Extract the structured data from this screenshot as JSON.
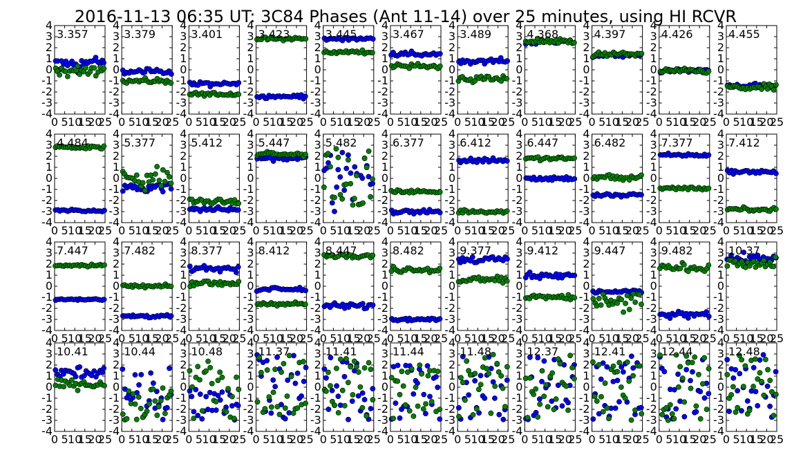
{
  "figure": {
    "title": "2016-11-13 06:35 UT: 3C84 Phases (Ant 11-14) over 25 minutes, using HI RCVR"
  },
  "chart_data": {
    "type": "scatter",
    "grid": false,
    "x_ticks": [
      "0",
      "5",
      "10",
      "15",
      "20",
      "25"
    ],
    "y_ticks": [
      "-4",
      "-3",
      "-2",
      "-1",
      "0",
      "1",
      "2",
      "3",
      "4"
    ],
    "xlim": [
      0,
      25
    ],
    "ylim": [
      -4,
      4
    ],
    "rows": 4,
    "cols": 11,
    "series_colors": [
      "#0000ff",
      "#008000"
    ],
    "panels": [
      {
        "label": "3.357",
        "s": [
          [
            "n",
            0.6,
            0.35,
            2
          ],
          [
            "n",
            -0.1,
            0.35,
            1.5
          ]
        ]
      },
      {
        "label": "3.379",
        "s": [
          [
            "n",
            -0.15,
            0.2,
            0
          ],
          [
            "n",
            -1.0,
            0.2,
            0
          ]
        ]
      },
      {
        "label": "3.401",
        "s": [
          [
            "n",
            -1.3,
            0.2,
            0
          ],
          [
            "n",
            -2.2,
            0.15,
            0
          ]
        ]
      },
      {
        "label": "3.423",
        "s": [
          [
            "n",
            -2.4,
            0.15,
            0
          ],
          [
            "n",
            2.8,
            0.15,
            0
          ]
        ]
      },
      {
        "label": "3.445",
        "s": [
          [
            "n",
            2.8,
            0.12,
            0
          ],
          [
            "n",
            1.6,
            0.18,
            0
          ]
        ]
      },
      {
        "label": "3.467",
        "s": [
          [
            "n",
            1.4,
            0.18,
            0
          ],
          [
            "n",
            0.3,
            0.2,
            0
          ]
        ]
      },
      {
        "label": "3.489",
        "s": [
          [
            "n",
            0.8,
            0.2,
            0
          ],
          [
            "n",
            -0.8,
            0.3,
            0
          ]
        ]
      },
      {
        "label": "4.368",
        "s": [
          [
            "n",
            2.5,
            0.2,
            0
          ],
          [
            "n",
            2.6,
            0.25,
            0
          ]
        ]
      },
      {
        "label": "4.397",
        "s": [
          [
            "n",
            1.3,
            0.2,
            0
          ],
          [
            "n",
            1.4,
            0.2,
            0
          ]
        ]
      },
      {
        "label": "4.426",
        "s": [
          [
            "n",
            -0.1,
            0.2,
            0
          ],
          [
            "n",
            -0.1,
            0.2,
            0
          ]
        ]
      },
      {
        "label": "4.455",
        "s": [
          [
            "n",
            -1.5,
            0.2,
            0
          ],
          [
            "n",
            -1.6,
            0.25,
            0
          ]
        ]
      },
      {
        "label": "4.484",
        "s": [
          [
            "n",
            -2.9,
            0.12,
            0
          ],
          [
            "n",
            2.8,
            0.15,
            0
          ]
        ]
      },
      {
        "label": "5.377",
        "s": [
          [
            "n",
            -0.8,
            0.5,
            0
          ],
          [
            "n",
            0.0,
            0.9,
            0
          ]
        ]
      },
      {
        "label": "5.412",
        "s": [
          [
            "n",
            -2.8,
            0.2,
            0
          ],
          [
            "n",
            -2.1,
            0.2,
            0
          ]
        ]
      },
      {
        "label": "5.447",
        "s": [
          [
            "n",
            1.8,
            0.2,
            0
          ],
          [
            "n",
            2.2,
            0.2,
            0
          ]
        ]
      },
      {
        "label": "5.482",
        "s": [
          [
            "u",
            -3,
            3
          ],
          [
            "u",
            -3,
            3
          ]
        ]
      },
      {
        "label": "6.377",
        "s": [
          [
            "n",
            -3.0,
            0.15,
            0
          ],
          [
            "n",
            -1.2,
            0.15,
            0
          ]
        ]
      },
      {
        "label": "6.412",
        "s": [
          [
            "n",
            1.6,
            0.2,
            0
          ],
          [
            "n",
            -3.0,
            0.15,
            0
          ]
        ]
      },
      {
        "label": "6.447",
        "s": [
          [
            "n",
            0.0,
            0.2,
            0
          ],
          [
            "n",
            1.8,
            0.15,
            0
          ]
        ]
      },
      {
        "label": "6.482",
        "s": [
          [
            "n",
            -1.5,
            0.2,
            0
          ],
          [
            "n",
            0.1,
            0.25,
            0
          ]
        ]
      },
      {
        "label": "7.377",
        "s": [
          [
            "n",
            2.1,
            0.12,
            0
          ],
          [
            "n",
            -0.9,
            0.15,
            0
          ]
        ]
      },
      {
        "label": "7.412",
        "s": [
          [
            "n",
            0.6,
            0.15,
            0
          ],
          [
            "n",
            -2.8,
            0.15,
            0
          ]
        ]
      },
      {
        "label": "7.447",
        "s": [
          [
            "n",
            -1.2,
            0.1,
            0
          ],
          [
            "n",
            1.9,
            0.12,
            0
          ]
        ]
      },
      {
        "label": "7.482",
        "s": [
          [
            "n",
            -2.7,
            0.15,
            0
          ],
          [
            "n",
            0.0,
            0.12,
            0
          ]
        ]
      },
      {
        "label": "8.377",
        "s": [
          [
            "n",
            1.6,
            0.25,
            0
          ],
          [
            "n",
            0.3,
            0.25,
            0
          ]
        ]
      },
      {
        "label": "8.412",
        "s": [
          [
            "n",
            -0.3,
            0.2,
            0
          ],
          [
            "n",
            -1.6,
            0.15,
            0
          ]
        ]
      },
      {
        "label": "8.447",
        "s": [
          [
            "n",
            -1.8,
            0.25,
            0
          ],
          [
            "n",
            2.8,
            0.2,
            0
          ]
        ]
      },
      {
        "label": "8.482",
        "s": [
          [
            "n",
            -3.0,
            0.1,
            0
          ],
          [
            "n",
            1.5,
            0.25,
            0
          ]
        ]
      },
      {
        "label": "9.377",
        "s": [
          [
            "n",
            2.4,
            0.3,
            0
          ],
          [
            "n",
            0.6,
            0.3,
            0
          ]
        ]
      },
      {
        "label": "9.412",
        "s": [
          [
            "n",
            1.0,
            0.25,
            0
          ],
          [
            "n",
            -1.0,
            0.25,
            0
          ]
        ]
      },
      {
        "label": "9.447",
        "s": [
          [
            "n",
            -0.5,
            0.15,
            0
          ],
          [
            "n",
            -1.5,
            0.9,
            0
          ]
        ]
      },
      {
        "label": "9.482",
        "s": [
          [
            "n",
            -2.6,
            0.3,
            0
          ],
          [
            "n",
            1.7,
            0.3,
            0
          ]
        ]
      },
      {
        "label": "10.37",
        "s": [
          [
            "n",
            2.5,
            0.35,
            0
          ],
          [
            "n",
            2.0,
            0.5,
            0
          ]
        ]
      },
      {
        "label": "10.41",
        "s": [
          [
            "n",
            1.3,
            0.5,
            0
          ],
          [
            "n",
            0.3,
            0.35,
            0
          ]
        ]
      },
      {
        "label": "10.44",
        "s": [
          [
            "u",
            -3,
            2
          ],
          [
            "u",
            -3,
            0
          ]
        ]
      },
      {
        "label": "10.48",
        "s": [
          [
            "u",
            -3,
            0
          ],
          [
            "u",
            -3,
            3
          ]
        ]
      },
      {
        "label": "11.37",
        "s": [
          [
            "u",
            -3,
            3
          ],
          [
            "u",
            -3,
            3
          ]
        ]
      },
      {
        "label": "11.41",
        "s": [
          [
            "u",
            -3,
            3
          ],
          [
            "u",
            -3,
            3
          ]
        ]
      },
      {
        "label": "11.44",
        "s": [
          [
            "u",
            -3,
            2
          ],
          [
            "u",
            -3,
            2
          ]
        ]
      },
      {
        "label": "11.48",
        "s": [
          [
            "u",
            -3,
            3
          ],
          [
            "u",
            -3,
            3
          ]
        ]
      },
      {
        "label": "12.37",
        "s": [
          [
            "u",
            -3,
            3
          ],
          [
            "u",
            -3,
            3
          ]
        ]
      },
      {
        "label": "12.41",
        "s": [
          [
            "u",
            -3,
            3
          ],
          [
            "u",
            -3,
            3
          ]
        ]
      },
      {
        "label": "12.44",
        "s": [
          [
            "u",
            -3,
            3
          ],
          [
            "u",
            -3,
            3
          ]
        ]
      },
      {
        "label": "12.48",
        "s": [
          [
            "u",
            -3,
            3
          ],
          [
            "u",
            -3,
            3
          ]
        ]
      }
    ]
  }
}
